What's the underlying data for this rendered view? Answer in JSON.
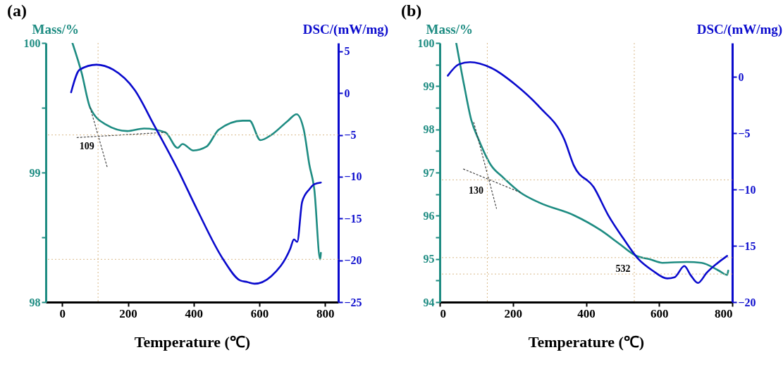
{
  "chart_data": [
    {
      "type": "line",
      "title": "(a)",
      "xlabel": "Temperature (℃)",
      "ylabel": "Mass/%",
      "y2label": "DSC/(mW/mg)",
      "xlim": [
        -50,
        840
      ],
      "xticks": [
        0,
        200,
        400,
        600,
        800
      ],
      "ylim": [
        98,
        100
      ],
      "yticks": [
        98,
        {
          "value": 98.5,
          "label": null
        },
        99,
        {
          "value": 99.5,
          "label": null
        },
        100
      ],
      "y2lim": [
        -25,
        6
      ],
      "y2ticks": [
        -25,
        -20,
        -15,
        -10,
        -5,
        0,
        5
      ],
      "grid": false,
      "series": [
        {
          "color": "#1e8c82",
          "x": [
            31,
            59,
            85,
            133,
            198,
            249,
            314,
            351,
            366,
            399,
            439,
            476,
            549,
            570,
            603,
            636,
            687,
            713,
            735,
            752,
            767,
            785,
            787
          ],
          "values": [
            100.0,
            99.77,
            99.5,
            99.37,
            99.32,
            99.34,
            99.31,
            99.19,
            99.22,
            99.17,
            99.2,
            99.33,
            99.4,
            99.4,
            99.25,
            99.29,
            99.4,
            99.45,
            99.33,
            99.06,
            98.87,
            98.33,
            98.38
          ]
        },
        {
          "color": "#0a0acd",
          "axis": "y2",
          "x": [
            27,
            53,
            104,
            155,
            220,
            279,
            351,
            410,
            490,
            541,
            563,
            585,
            636,
            694,
            705,
            715,
            730,
            752,
            767,
            787
          ],
          "values": [
            0.1,
            2.8,
            3.4,
            2.8,
            0.4,
            -3.8,
            -9.1,
            -13.9,
            -19.9,
            -22.4,
            -22.6,
            -22.8,
            -21.9,
            -18.6,
            -17.5,
            -17.8,
            -13.0,
            -11.5,
            -10.9,
            -10.7
          ]
        },
        {
          "color": "#404040",
          "line_style": "dotted",
          "x": [
            85,
            137
          ],
          "values": [
            99.5,
            99.04
          ]
        },
        {
          "color": "#404040",
          "line_style": "dotted",
          "x": [
            45,
            314
          ],
          "values": [
            99.27,
            99.31
          ]
        }
      ],
      "ref_lines": [
        {
          "axis": "x",
          "value": 109,
          "color": "#d8b889",
          "line_style": "dotted"
        },
        {
          "axis": "y",
          "value": 99.29,
          "color": "#d8b889",
          "line_style": "dotted"
        },
        {
          "axis": "y",
          "value": 98.33,
          "color": "#d8b889",
          "line_style": "dotted"
        }
      ],
      "annotations": [
        {
          "text": "109",
          "x": 109,
          "y": 99.29
        }
      ]
    },
    {
      "type": "line",
      "title": "(b)",
      "xlabel": "Temperature (℃)",
      "ylabel": "Mass/%",
      "y2label": "DSC/(mW/mg)",
      "xlim": [
        0,
        800
      ],
      "xticks": [
        0,
        200,
        400,
        600,
        800
      ],
      "ylim": [
        94,
        100
      ],
      "yticks": [
        94,
        {
          "value": 94.5,
          "label": null
        },
        95,
        {
          "value": 95.5,
          "label": null
        },
        96,
        {
          "value": 96.5,
          "label": null
        },
        97,
        {
          "value": 97.5,
          "label": null
        },
        98,
        {
          "value": 98.5,
          "label": null
        },
        99,
        {
          "value": 99.5,
          "label": null
        },
        100
      ],
      "y2lim": [
        -20,
        3
      ],
      "y2ticks": [
        -20,
        -15,
        -10,
        -5,
        0
      ],
      "grid": false,
      "series": [
        {
          "color": "#1e8c82",
          "x": [
            45,
            67,
            86,
            107,
            140,
            174,
            220,
            273,
            367,
            441,
            488,
            535,
            575,
            609,
            675,
            716,
            763,
            786,
            789
          ],
          "values": [
            100.0,
            99.0,
            98.22,
            97.75,
            97.17,
            96.88,
            96.54,
            96.3,
            96.01,
            95.66,
            95.37,
            95.08,
            94.99,
            94.91,
            94.93,
            94.91,
            94.73,
            94.63,
            94.73
          ]
        },
        {
          "color": "#0a0acd",
          "axis": "y2",
          "x": [
            22,
            52,
            83,
            140,
            207,
            273,
            341,
            367,
            421,
            461,
            501,
            541,
            582,
            622,
            642,
            669,
            686,
            706,
            730,
            786
          ],
          "values": [
            0.1,
            1.1,
            1.3,
            0.8,
            -0.7,
            -2.7,
            -5.6,
            -7.9,
            -9.8,
            -12.3,
            -14.3,
            -16.1,
            -17.2,
            -17.9,
            -17.8,
            -16.8,
            -17.6,
            -18.3,
            -17.4,
            -15.9
          ]
        },
        {
          "color": "#404040",
          "line_style": "dotted",
          "x": [
            93,
            155
          ],
          "values": [
            98.16,
            96.17
          ]
        },
        {
          "color": "#404040",
          "line_style": "dotted",
          "x": [
            65,
            220
          ],
          "values": [
            97.08,
            96.54
          ]
        }
      ],
      "ref_lines": [
        {
          "axis": "x",
          "value": 130,
          "color": "#d8b889",
          "line_style": "dotted"
        },
        {
          "axis": "x",
          "value": 532,
          "color": "#d8b889",
          "line_style": "dotted"
        },
        {
          "axis": "y",
          "value": 96.83,
          "color": "#d8b889",
          "line_style": "dotted"
        },
        {
          "axis": "y",
          "value": 95.03,
          "color": "#d8b889",
          "line_style": "dotted"
        },
        {
          "axis": "y",
          "value": 94.65,
          "color": "#d8b889",
          "line_style": "dotted"
        }
      ],
      "annotations": [
        {
          "text": "130",
          "x": 130,
          "y": 96.83
        },
        {
          "text": "532",
          "x": 532,
          "y": 95.03
        }
      ]
    }
  ]
}
